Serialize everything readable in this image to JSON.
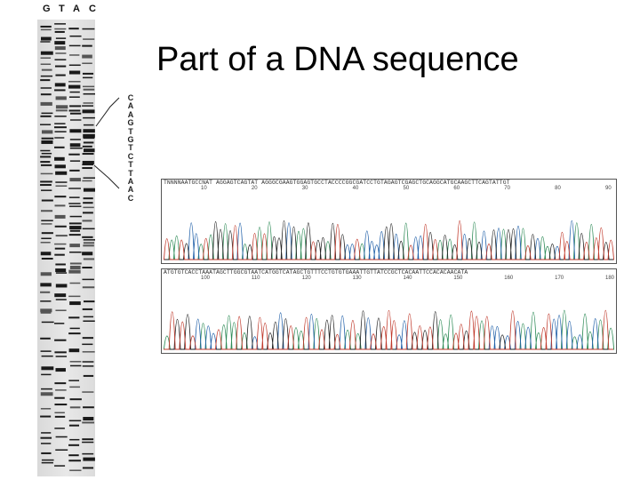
{
  "slide": {
    "title": "Part of a DNA sequence"
  },
  "gel": {
    "lanes": [
      "G",
      "T",
      "A",
      "C"
    ]
  },
  "read_sequence": [
    "C",
    "A",
    "A",
    "G",
    "T",
    "G",
    "T",
    "C",
    "T",
    "T",
    "A",
    "A",
    "C"
  ],
  "chromatogram": {
    "colors": {
      "A": "#2e8b57",
      "C": "#1f5fa8",
      "G": "#222222",
      "T": "#c0392b"
    },
    "panels": [
      {
        "sequence": "TNNNNAATGCCNAT AGGAGTCAGTAT AGGGCGAAGTGGAGTGCCTACCCCGGCGATCCTGTAGAGTCGAGCTGCAGGCATGCAAGCTTCAGTATTGT",
        "positions": [
          "10",
          "20",
          "30",
          "40",
          "50",
          "60",
          "70",
          "80",
          "90"
        ]
      },
      {
        "sequence": "ATGTGTCACCTAAATAGCTTGGCGTAATCATGGTCATAGCTGTTTCCTGTGTGAAATTGTTATCCGCTCACAATTCCACACAACATA",
        "positions": [
          "100",
          "110",
          "120",
          "130",
          "140",
          "150",
          "160",
          "170",
          "180"
        ]
      }
    ]
  }
}
